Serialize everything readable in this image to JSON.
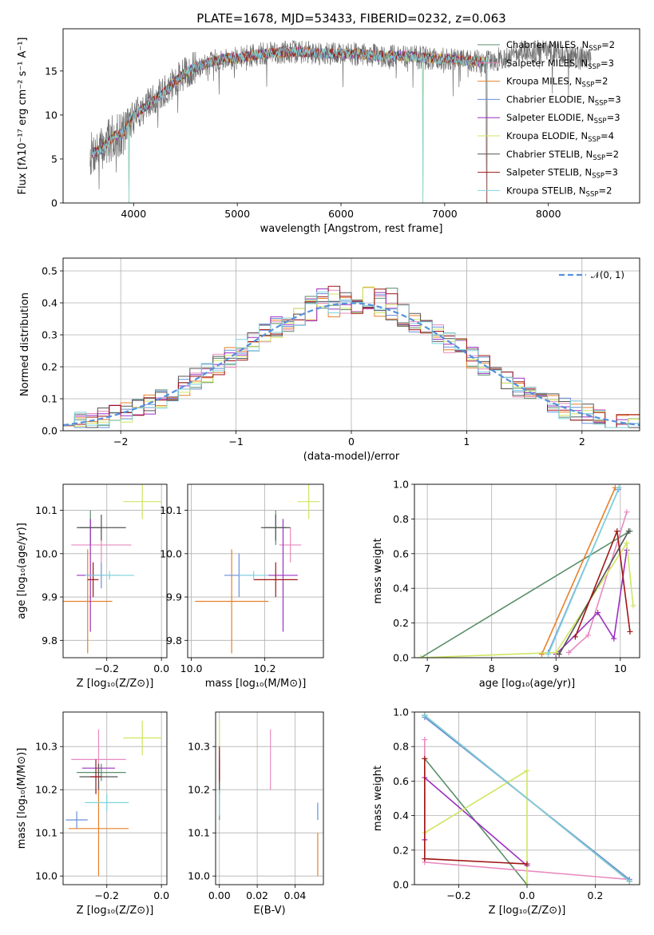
{
  "colors": {
    "Chabrier MILES": "#5b8f6a",
    "Salpeter MILES": "#e88ac0",
    "Kroupa MILES": "#e6802a",
    "Chabrier ELODIE": "#6a8fd8",
    "Salpeter ELODIE": "#9b30c0",
    "Kroupa ELODIE": "#cfe660",
    "Chabrier STELIB": "#555555",
    "Salpeter STELIB": "#a01515",
    "Kroupa STELIB": "#7fd3dd",
    "spectrum": "#707070",
    "normal": "#5590dd"
  },
  "chart_data": [
    {
      "type": "line",
      "title": "PLATE=1678, MJD=53433, FIBERID=0232, z=0.063",
      "xlabel": "wavelength [Angstrom, rest frame]",
      "ylabel": "Flux [fλ10⁻¹⁷ erg cm⁻² s⁻¹ A⁻¹]",
      "xlim": [
        3320,
        8880
      ],
      "ylim": [
        0,
        19.8
      ],
      "xticks": [
        "4000",
        "5000",
        "6000",
        "7000",
        "8000"
      ],
      "yticks": [
        "0",
        "5",
        "10",
        "15"
      ],
      "grid": false,
      "legend_position": "top-right",
      "legend": [
        [
          "Chabrier MILES, N",
          "SSP",
          "=2"
        ],
        [
          "Salpeter MILES, N",
          "SSP",
          "=3"
        ],
        [
          "Kroupa MILES, N",
          "SSP",
          "=2"
        ],
        [
          "Chabrier ELODIE, N",
          "SSP",
          "=3"
        ],
        [
          "Salpeter ELODIE, N",
          "SSP",
          "=3"
        ],
        [
          "Kroupa ELODIE, N",
          "SSP",
          "=4"
        ],
        [
          "Chabrier STELIB, N",
          "SSP",
          "=2"
        ],
        [
          "Salpeter STELIB, N",
          "SSP",
          "=3"
        ],
        [
          "Kroupa STELIB, N",
          "SSP",
          "=2"
        ]
      ],
      "continuum": {
        "x": [
          3580,
          3700,
          3800,
          3900,
          3950,
          4000,
          4100,
          4200,
          4300,
          4400,
          4500,
          4600,
          4700,
          4800,
          4900,
          5000,
          5200,
          5400,
          5600,
          5800,
          6000,
          6200,
          6400,
          6600,
          6800,
          7000,
          7200,
          7400,
          7600,
          7800,
          8000,
          8200,
          8400,
          8800
        ],
        "y": [
          5.5,
          6.2,
          7.5,
          8.0,
          9.0,
          10.0,
          10.8,
          11.8,
          12.6,
          13.8,
          14.8,
          15.4,
          15.8,
          16.2,
          16.5,
          16.4,
          16.9,
          17.1,
          17.2,
          17.0,
          17.0,
          16.9,
          16.7,
          16.7,
          16.5,
          16.4,
          16.2,
          16.0,
          16.6,
          17.3,
          17.1,
          16.7,
          16.3,
          16.0
        ]
      },
      "data_range": [
        3580,
        8410
      ],
      "model_range": [
        3600,
        7420
      ],
      "dropouts": [
        3955,
        6790,
        7410
      ]
    },
    {
      "type": "line",
      "xlabel": "(data-model)/error",
      "ylabel": "Normed distribution",
      "xlim": [
        -2.5,
        2.5
      ],
      "ylim": [
        0,
        0.54
      ],
      "xticks": [
        "−2",
        "−1",
        "0",
        "1",
        "2"
      ],
      "yticks": [
        "0.0",
        "0.1",
        "0.2",
        "0.3",
        "0.4",
        "0.5"
      ],
      "grid": true,
      "legend_position": "top-right",
      "legend": [
        "𝒩(0, 1)"
      ],
      "bin_width": 0.1,
      "bins_from": -2.5
    },
    {
      "type": "scatter",
      "xlabel": "Z [log₁₀(Z/Z⊙)]",
      "ylabel": "age  [log₁₀(age/yr)]",
      "xlim": [
        -0.36,
        0.02
      ],
      "ylim": [
        9.76,
        10.16
      ],
      "xticks": [
        "−0.2",
        "0.0"
      ],
      "yticks": [
        "9.8",
        "9.9",
        "10.0",
        "10.1"
      ],
      "grid": true,
      "points": [
        {
          "model": "Chabrier MILES",
          "x": -0.26,
          "xerr": 0.04,
          "y": 10.06,
          "yerr": 0.04
        },
        {
          "model": "Salpeter MILES",
          "x": -0.22,
          "xerr": 0.11,
          "y": 10.02,
          "yerr": 0.04
        },
        {
          "model": "Kroupa MILES",
          "x": -0.27,
          "xerr": 0.09,
          "y": 9.89,
          "yerr": 0.12
        },
        {
          "model": "Chabrier ELODIE",
          "x": -0.22,
          "xerr": 0.07,
          "y": 9.95,
          "yerr": 0.03
        },
        {
          "model": "Salpeter ELODIE",
          "x": -0.26,
          "xerr": 0.05,
          "y": 9.95,
          "yerr": 0.13
        },
        {
          "model": "Kroupa ELODIE",
          "x": -0.07,
          "xerr": 0.07,
          "y": 10.12,
          "yerr": 0.04
        },
        {
          "model": "Chabrier STELIB",
          "x": -0.22,
          "xerr": 0.09,
          "y": 10.06,
          "yerr": 0.03
        },
        {
          "model": "Salpeter STELIB",
          "x": -0.25,
          "xerr": 0.02,
          "y": 9.94,
          "yerr": 0.04
        },
        {
          "model": "Kroupa STELIB",
          "x": -0.19,
          "xerr": 0.09,
          "y": 9.95,
          "yerr": 0.01
        }
      ]
    },
    {
      "type": "scatter",
      "xlabel": "mass [log₁₀(M/M⊙)]",
      "xlim": [
        9.99,
        10.36
      ],
      "ylim": [
        9.76,
        10.16
      ],
      "xticks": [
        "10.0",
        "10.2"
      ],
      "yticks": [
        "9.8",
        "9.9",
        "10.0",
        "10.1"
      ],
      "grid": true,
      "points": [
        {
          "model": "Chabrier MILES",
          "x": 10.23,
          "xerr": 0.03,
          "y": 10.06,
          "yerr": 0.04
        },
        {
          "model": "Salpeter MILES",
          "x": 10.27,
          "xerr": 0.03,
          "y": 10.02,
          "yerr": 0.04
        },
        {
          "model": "Kroupa MILES",
          "x": 10.11,
          "xerr": 0.1,
          "y": 9.89,
          "yerr": 0.12
        },
        {
          "model": "Chabrier ELODIE",
          "x": 10.13,
          "xerr": 0.04,
          "y": 9.95,
          "yerr": 0.05
        },
        {
          "model": "Salpeter ELODIE",
          "x": 10.25,
          "xerr": 0.04,
          "y": 9.95,
          "yerr": 0.13
        },
        {
          "model": "Kroupa ELODIE",
          "x": 10.32,
          "xerr": 0.03,
          "y": 10.12,
          "yerr": 0.04
        },
        {
          "model": "Chabrier STELIB",
          "x": 10.23,
          "xerr": 0.04,
          "y": 10.06,
          "yerr": 0.03
        },
        {
          "model": "Salpeter STELIB",
          "x": 10.23,
          "xerr": 0.06,
          "y": 9.94,
          "yerr": 0.04
        },
        {
          "model": "Kroupa STELIB",
          "x": 10.17,
          "xerr": 0.04,
          "y": 9.95,
          "yerr": 0.01
        }
      ]
    },
    {
      "type": "line",
      "xlabel": "age  [log₁₀(age/yr)]",
      "ylabel": "mass weight",
      "xlim": [
        6.8,
        10.3
      ],
      "ylim": [
        0,
        1
      ],
      "xticks": [
        "7",
        "8",
        "9",
        "10"
      ],
      "yticks": [
        "0.0",
        "0.2",
        "0.4",
        "0.6",
        "0.8",
        "1.0"
      ],
      "grid": true,
      "series": [
        {
          "model": "Chabrier MILES",
          "x": [
            6.9,
            10.15
          ],
          "y": [
            0.0,
            0.73
          ]
        },
        {
          "model": "Salpeter MILES",
          "x": [
            9.2,
            9.5,
            10.1
          ],
          "y": [
            0.03,
            0.13,
            0.84
          ]
        },
        {
          "model": "Kroupa MILES",
          "x": [
            8.78,
            9.92
          ],
          "y": [
            0.02,
            0.98
          ]
        },
        {
          "model": "Chabrier ELODIE",
          "x": [
            8.88,
            9.97
          ],
          "y": [
            0.03,
            0.97
          ]
        },
        {
          "model": "Salpeter ELODIE",
          "x": [
            9.0,
            9.65,
            9.9,
            10.1
          ],
          "y": [
            0.02,
            0.26,
            0.11,
            0.62
          ]
        },
        {
          "model": "Kroupa ELODIE",
          "x": [
            6.9,
            9.0,
            10.1,
            10.2
          ],
          "y": [
            0.0,
            0.03,
            0.66,
            0.3
          ]
        },
        {
          "model": "Chabrier STELIB",
          "x": [
            9.05,
            10.13
          ],
          "y": [
            0.02,
            0.73
          ]
        },
        {
          "model": "Salpeter STELIB",
          "x": [
            9.3,
            9.95,
            10.15
          ],
          "y": [
            0.12,
            0.73,
            0.15
          ]
        },
        {
          "model": "Kroupa STELIB",
          "x": [
            8.88,
            9.98
          ],
          "y": [
            0.02,
            0.98
          ]
        }
      ]
    },
    {
      "type": "scatter",
      "xlabel": "Z [log₁₀(Z/Z⊙)]",
      "ylabel": "mass [log₁₀(M/M⊙)]",
      "xlim": [
        -0.36,
        0.02
      ],
      "ylim": [
        9.98,
        10.38
      ],
      "xticks": [
        "−0.2",
        "0.0"
      ],
      "yticks": [
        "10.0",
        "10.1",
        "10.2",
        "10.3"
      ],
      "grid": true,
      "points": [
        {
          "model": "Chabrier MILES",
          "x": -0.22,
          "xerr": 0.09,
          "y": 10.24,
          "yerr": 0.02
        },
        {
          "model": "Salpeter MILES",
          "x": -0.23,
          "xerr": 0.1,
          "y": 10.27,
          "yerr": 0.07
        },
        {
          "model": "Kroupa MILES",
          "x": -0.23,
          "xerr": 0.11,
          "y": 10.11,
          "yerr": 0.11
        },
        {
          "model": "Chabrier ELODIE",
          "x": -0.31,
          "xerr": 0.04,
          "y": 10.13,
          "yerr": 0.02
        },
        {
          "model": "Salpeter ELODIE",
          "x": -0.23,
          "xerr": 0.06,
          "y": 10.25,
          "yerr": 0.01
        },
        {
          "model": "Kroupa ELODIE",
          "x": -0.07,
          "xerr": 0.07,
          "y": 10.32,
          "yerr": 0.04
        },
        {
          "model": "Chabrier STELIB",
          "x": -0.23,
          "xerr": 0.07,
          "y": 10.23,
          "yerr": 0.03
        },
        {
          "model": "Salpeter STELIB",
          "x": -0.24,
          "xerr": 0.02,
          "y": 10.23,
          "yerr": 0.04
        },
        {
          "model": "Kroupa STELIB",
          "x": -0.2,
          "xerr": 0.08,
          "y": 10.17,
          "yerr": 0.02
        }
      ]
    },
    {
      "type": "scatter",
      "xlabel": "E(B-V)",
      "xlim": [
        -0.002,
        0.055
      ],
      "ylim": [
        9.98,
        10.38
      ],
      "xticks": [
        "0.00",
        "0.02",
        "0.04"
      ],
      "yticks": [
        "10.0",
        "10.1",
        "10.2",
        "10.3"
      ],
      "grid": true,
      "points": [
        {
          "model": "Chabrier MILES",
          "x": 0.0,
          "y": 10.21,
          "yerr": 0.08
        },
        {
          "model": "Salpeter MILES",
          "x": 0.027,
          "y": 10.27,
          "yerr": 0.07
        },
        {
          "model": "Kroupa MILES",
          "x": 0.052,
          "y": 10.05,
          "yerr": 0.05
        },
        {
          "model": "Chabrier ELODIE",
          "x": 0.052,
          "y": 10.15,
          "yerr": 0.02
        },
        {
          "model": "Salpeter ELODIE",
          "x": 0.0,
          "y": 10.25,
          "yerr": 0.02
        },
        {
          "model": "Kroupa ELODIE",
          "x": 0.0,
          "y": 10.32,
          "yerr": 0.04
        },
        {
          "model": "Chabrier STELIB",
          "x": 0.0,
          "y": 10.22,
          "yerr": 0.03
        },
        {
          "model": "Salpeter STELIB",
          "x": 0.0,
          "y": 10.26,
          "yerr": 0.04
        },
        {
          "model": "Kroupa STELIB",
          "x": 0.0,
          "y": 10.17,
          "yerr": 0.03
        }
      ]
    },
    {
      "type": "line",
      "xlabel": "Z [log₁₀(Z/Z⊙)]",
      "ylabel": "mass weight",
      "xlim": [
        -0.33,
        0.33
      ],
      "ylim": [
        0,
        1
      ],
      "xticks": [
        "−0.2",
        "0.0",
        "0.2"
      ],
      "yticks": [
        "0.0",
        "0.2",
        "0.4",
        "0.6",
        "0.8",
        "1.0"
      ],
      "grid": true,
      "series": [
        {
          "model": "Chabrier MILES",
          "x": [
            -0.3,
            0.0
          ],
          "y": [
            0.73,
            0.0
          ]
        },
        {
          "model": "Salpeter MILES",
          "x": [
            -0.3,
            -0.3,
            0.3
          ],
          "y": [
            0.84,
            0.13,
            0.03
          ]
        },
        {
          "model": "Kroupa MILES",
          "x": [
            -0.3,
            0.3
          ],
          "y": [
            0.98,
            0.02
          ]
        },
        {
          "model": "Chabrier ELODIE",
          "x": [
            -0.3,
            0.3
          ],
          "y": [
            0.97,
            0.03
          ]
        },
        {
          "model": "Salpeter ELODIE",
          "x": [
            -0.3,
            -0.3,
            0.0
          ],
          "y": [
            0.26,
            0.62,
            0.11
          ]
        },
        {
          "model": "Kroupa ELODIE",
          "x": [
            -0.3,
            0.0,
            0.0
          ],
          "y": [
            0.3,
            0.66,
            0.0
          ]
        },
        {
          "model": "Chabrier STELIB",
          "x": [
            -0.3,
            0.3
          ],
          "y": [
            0.98,
            0.02
          ]
        },
        {
          "model": "Salpeter STELIB",
          "x": [
            -0.3,
            -0.3,
            0.0
          ],
          "y": [
            0.73,
            0.15,
            0.12
          ]
        },
        {
          "model": "Kroupa STELIB",
          "x": [
            -0.3,
            0.3
          ],
          "y": [
            0.98,
            0.02
          ]
        }
      ]
    }
  ]
}
